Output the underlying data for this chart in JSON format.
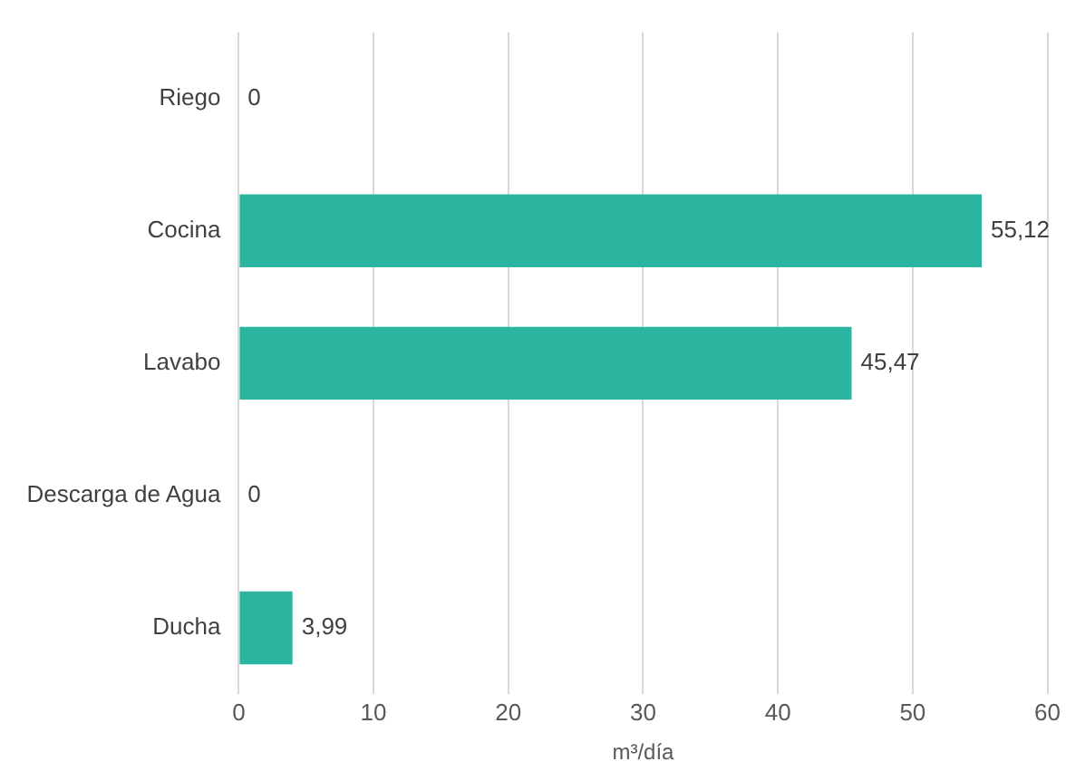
{
  "chart_data": {
    "type": "bar",
    "orientation": "horizontal",
    "categories": [
      "Riego",
      "Cocina",
      "Lavabo",
      "Descarga de Agua",
      "Ducha"
    ],
    "values": [
      0,
      55.12,
      45.47,
      0,
      3.99
    ],
    "value_labels": [
      "0",
      "55,12",
      "45,47",
      "0",
      "3,99"
    ],
    "color": "#2bb5a0",
    "xlim": [
      0,
      60
    ],
    "xticks": [
      0,
      10,
      20,
      30,
      40,
      50,
      60
    ],
    "xlabel": "m³/día",
    "grid": "x",
    "legend": false
  }
}
